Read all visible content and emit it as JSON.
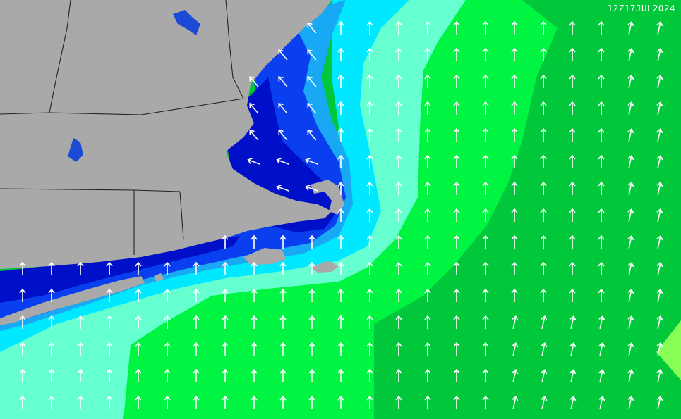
{
  "timestamp": "12Z17JUL2024",
  "colors": {
    "land": "#a9a9a9",
    "state_border": "#222222",
    "lake": "#1a4ad6",
    "band_deep_navy": "#0010c8",
    "band_blue": "#0a3ff0",
    "band_mid_blue": "#18a8f4",
    "band_cyan": "#00e8ff",
    "band_aquamarine": "#66ffd0",
    "band_green": "#00f542",
    "band_dark_green": "#00c83a",
    "band_yellow_green": "#88ff55",
    "arrow": "#ffffff"
  },
  "arrows": {
    "icon": "wind-arrow-icon",
    "default_direction": "north"
  }
}
